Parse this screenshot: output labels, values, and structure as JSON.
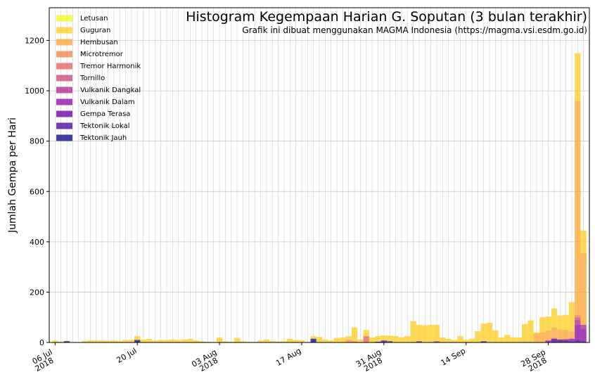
{
  "chart_data": {
    "type": "stacked_bar",
    "title": "Histogram Kegempaan Harian G. Soputan (3 bulan terakhir)",
    "subtitle": "Grafik ini dibuat menggunakan MAGMA Indonesia (https://magma.vsi.esdm.go.id)",
    "y_label": "Jumlah Gempa per Hari",
    "x": [
      "2018-07-06",
      "2018-07-07",
      "2018-07-08",
      "2018-07-09",
      "2018-07-10",
      "2018-07-11",
      "2018-07-12",
      "2018-07-13",
      "2018-07-14",
      "2018-07-15",
      "2018-07-16",
      "2018-07-17",
      "2018-07-18",
      "2018-07-19",
      "2018-07-20",
      "2018-07-21",
      "2018-07-22",
      "2018-07-23",
      "2018-07-24",
      "2018-07-25",
      "2018-07-26",
      "2018-07-27",
      "2018-07-28",
      "2018-07-29",
      "2018-07-30",
      "2018-07-31",
      "2018-08-01",
      "2018-08-02",
      "2018-08-03",
      "2018-08-04",
      "2018-08-05",
      "2018-08-06",
      "2018-08-07",
      "2018-08-08",
      "2018-08-09",
      "2018-08-10",
      "2018-08-11",
      "2018-08-12",
      "2018-08-13",
      "2018-08-14",
      "2018-08-15",
      "2018-08-16",
      "2018-08-17",
      "2018-08-18",
      "2018-08-19",
      "2018-08-20",
      "2018-08-21",
      "2018-08-22",
      "2018-08-23",
      "2018-08-24",
      "2018-08-25",
      "2018-08-26",
      "2018-08-27",
      "2018-08-28",
      "2018-08-29",
      "2018-08-30",
      "2018-08-31",
      "2018-09-01",
      "2018-09-02",
      "2018-09-03",
      "2018-09-04",
      "2018-09-05",
      "2018-09-06",
      "2018-09-07",
      "2018-09-08",
      "2018-09-09",
      "2018-09-10",
      "2018-09-11",
      "2018-09-12",
      "2018-09-13",
      "2018-09-14",
      "2018-09-15",
      "2018-09-16",
      "2018-09-17",
      "2018-09-18",
      "2018-09-19",
      "2018-09-20",
      "2018-09-21",
      "2018-09-22",
      "2018-09-23",
      "2018-09-24",
      "2018-09-25",
      "2018-09-26",
      "2018-09-27",
      "2018-09-28",
      "2018-09-29",
      "2018-09-30",
      "2018-10-01",
      "2018-10-02",
      "2018-10-03",
      "2018-10-04"
    ],
    "xlim": [
      "2018-07-05",
      "2018-10-05"
    ],
    "xticks": [
      {
        "value": "2018-07-06",
        "label": "06 Jul 2018"
      },
      {
        "value": "2018-07-20",
        "label": "20 Jul"
      },
      {
        "value": "2018-08-03",
        "label": "03 Aug 2018"
      },
      {
        "value": "2018-08-17",
        "label": "17 Aug"
      },
      {
        "value": "2018-08-31",
        "label": "31 Aug 2018"
      },
      {
        "value": "2018-09-14",
        "label": "14 Sep"
      },
      {
        "value": "2018-09-28",
        "label": "28 Sep 2018"
      }
    ],
    "ylim": [
      0,
      1330
    ],
    "yticks": [
      0,
      200,
      400,
      600,
      800,
      1000,
      1200
    ],
    "grid": true,
    "legend": "upper left",
    "series": [
      {
        "name": "Letusan",
        "color": "#f0f921",
        "values": [
          0,
          0,
          0,
          0,
          0,
          0,
          0,
          0,
          0,
          0,
          0,
          0,
          0,
          0,
          0,
          0,
          0,
          0,
          0,
          0,
          0,
          0,
          0,
          0,
          0,
          0,
          0,
          0,
          0,
          0,
          0,
          0,
          0,
          0,
          0,
          0,
          0,
          0,
          0,
          0,
          0,
          0,
          0,
          0,
          0,
          0,
          0,
          0,
          0,
          0,
          0,
          0,
          0,
          0,
          0,
          0,
          0,
          0,
          0,
          0,
          0,
          0,
          0,
          0,
          0,
          0,
          0,
          0,
          0,
          0,
          0,
          0,
          0,
          0,
          0,
          0,
          0,
          0,
          0,
          0,
          0,
          0,
          0,
          0,
          0,
          0,
          0,
          0,
          0,
          0,
          0
        ]
      },
      {
        "name": "Guguran",
        "color": "#fcce25",
        "values": [
          8,
          3,
          2,
          0,
          0,
          6,
          8,
          8,
          8,
          7,
          8,
          6,
          10,
          10,
          15,
          12,
          14,
          8,
          10,
          10,
          12,
          10,
          12,
          15,
          8,
          5,
          3,
          2,
          20,
          5,
          3,
          18,
          5,
          3,
          2,
          8,
          12,
          6,
          4,
          5,
          15,
          10,
          8,
          2,
          10,
          22,
          12,
          8,
          18,
          20,
          15,
          55,
          12,
          25,
          20,
          22,
          20,
          22,
          25,
          20,
          25,
          85,
          65,
          68,
          70,
          65,
          20,
          15,
          10,
          25,
          10,
          15,
          45,
          70,
          78,
          48,
          20,
          30,
          20,
          20,
          70,
          85,
          5,
          60,
          55,
          75,
          55,
          60,
          115,
          190,
          90
        ]
      },
      {
        "name": "Hembusan",
        "color": "#fca636",
        "values": [
          0,
          0,
          0,
          0,
          0,
          0,
          0,
          0,
          0,
          0,
          0,
          0,
          0,
          0,
          0,
          0,
          0,
          0,
          0,
          0,
          0,
          0,
          0,
          0,
          0,
          0,
          0,
          0,
          0,
          0,
          0,
          0,
          0,
          0,
          0,
          0,
          0,
          0,
          0,
          0,
          0,
          0,
          0,
          0,
          0,
          0,
          0,
          0,
          0,
          0,
          0,
          0,
          0,
          0,
          0,
          0,
          0,
          0,
          0,
          0,
          0,
          0,
          0,
          0,
          0,
          0,
          0,
          0,
          0,
          0,
          0,
          0,
          0,
          0,
          0,
          0,
          0,
          0,
          0,
          0,
          3,
          3,
          35,
          40,
          40,
          40,
          40,
          35,
          30,
          850,
          285
        ]
      },
      {
        "name": "Microtremor",
        "color": "#f2844b",
        "values": [
          0,
          0,
          0,
          0,
          0,
          0,
          0,
          0,
          0,
          0,
          0,
          0,
          0,
          0,
          0,
          0,
          0,
          0,
          0,
          0,
          0,
          0,
          0,
          0,
          0,
          0,
          0,
          0,
          0,
          0,
          0,
          0,
          0,
          0,
          0,
          0,
          0,
          0,
          0,
          0,
          0,
          0,
          0,
          0,
          0,
          0,
          0,
          0,
          0,
          0,
          10,
          0,
          0,
          0,
          0,
          0,
          0,
          0,
          0,
          0,
          0,
          0,
          0,
          0,
          0,
          0,
          0,
          0,
          0,
          0,
          0,
          0,
          0,
          0,
          0,
          0,
          0,
          0,
          0,
          0,
          0,
          0,
          0,
          0,
          0,
          5,
          0,
          0,
          0,
          10,
          0
        ]
      },
      {
        "name": "Tremor Harmonik",
        "color": "#e16462",
        "values": [
          0,
          0,
          0,
          0,
          0,
          0,
          0,
          0,
          0,
          0,
          0,
          0,
          0,
          0,
          0,
          0,
          0,
          0,
          0,
          0,
          0,
          0,
          0,
          0,
          0,
          0,
          0,
          0,
          0,
          0,
          0,
          0,
          0,
          0,
          0,
          0,
          0,
          0,
          0,
          0,
          0,
          0,
          0,
          0,
          0,
          0,
          0,
          0,
          0,
          0,
          0,
          5,
          0,
          25,
          0,
          0,
          0,
          0,
          0,
          0,
          0,
          0,
          0,
          0,
          0,
          0,
          0,
          0,
          0,
          0,
          0,
          0,
          0,
          0,
          0,
          0,
          0,
          0,
          0,
          0,
          0,
          0,
          0,
          0,
          0,
          0,
          0,
          0,
          0,
          0,
          0
        ]
      },
      {
        "name": "Tornillo",
        "color": "#cc4778",
        "values": [
          0,
          0,
          0,
          0,
          0,
          0,
          0,
          0,
          0,
          0,
          0,
          0,
          0,
          0,
          0,
          0,
          0,
          0,
          0,
          0,
          0,
          0,
          0,
          0,
          0,
          0,
          0,
          0,
          0,
          0,
          0,
          0,
          0,
          0,
          0,
          0,
          0,
          0,
          0,
          0,
          0,
          0,
          0,
          0,
          0,
          0,
          0,
          0,
          0,
          0,
          0,
          0,
          0,
          0,
          0,
          0,
          0,
          0,
          0,
          0,
          0,
          0,
          0,
          0,
          0,
          0,
          0,
          0,
          0,
          0,
          0,
          0,
          0,
          0,
          0,
          0,
          0,
          0,
          0,
          0,
          0,
          0,
          0,
          0,
          0,
          0,
          0,
          5,
          0,
          10,
          0
        ]
      },
      {
        "name": "Vulkanik Dangkal",
        "color": "#b12a90",
        "values": [
          0,
          0,
          0,
          0,
          0,
          0,
          0,
          0,
          0,
          0,
          0,
          0,
          0,
          0,
          0,
          0,
          0,
          0,
          0,
          0,
          0,
          0,
          0,
          0,
          0,
          0,
          0,
          0,
          0,
          0,
          0,
          0,
          0,
          0,
          0,
          0,
          0,
          0,
          0,
          0,
          0,
          0,
          0,
          0,
          0,
          0,
          0,
          0,
          0,
          0,
          0,
          0,
          0,
          0,
          0,
          0,
          0,
          0,
          0,
          0,
          0,
          0,
          0,
          0,
          0,
          5,
          0,
          0,
          0,
          0,
          0,
          0,
          0,
          0,
          0,
          0,
          0,
          0,
          0,
          0,
          0,
          0,
          0,
          0,
          0,
          0,
          0,
          0,
          0,
          20,
          15
        ]
      },
      {
        "name": "Vulkanik Dalam",
        "color": "#8f0da4",
        "values": [
          0,
          0,
          0,
          0,
          0,
          0,
          0,
          0,
          0,
          0,
          0,
          0,
          0,
          0,
          0,
          0,
          0,
          0,
          0,
          0,
          0,
          0,
          0,
          0,
          0,
          0,
          0,
          0,
          0,
          0,
          0,
          0,
          0,
          0,
          0,
          0,
          0,
          0,
          0,
          0,
          0,
          0,
          0,
          0,
          0,
          0,
          0,
          0,
          0,
          0,
          0,
          0,
          0,
          0,
          0,
          0,
          0,
          0,
          0,
          0,
          0,
          0,
          5,
          0,
          0,
          0,
          0,
          0,
          0,
          0,
          0,
          0,
          0,
          0,
          0,
          0,
          0,
          0,
          0,
          0,
          0,
          0,
          0,
          0,
          8,
          0,
          0,
          0,
          10,
          60,
          50
        ]
      },
      {
        "name": "Gempa Terasa",
        "color": "#6a00a8",
        "values": [
          0,
          0,
          0,
          0,
          0,
          0,
          0,
          0,
          0,
          0,
          0,
          0,
          0,
          0,
          0,
          0,
          0,
          0,
          0,
          0,
          0,
          0,
          0,
          0,
          0,
          0,
          0,
          0,
          0,
          0,
          0,
          0,
          0,
          0,
          0,
          0,
          0,
          0,
          0,
          0,
          0,
          0,
          0,
          0,
          0,
          0,
          0,
          0,
          0,
          0,
          0,
          0,
          0,
          0,
          0,
          0,
          0,
          0,
          0,
          0,
          0,
          0,
          0,
          0,
          0,
          0,
          0,
          0,
          0,
          0,
          0,
          0,
          0,
          0,
          0,
          0,
          0,
          0,
          0,
          0,
          0,
          0,
          0,
          0,
          0,
          0,
          0,
          0,
          0,
          0,
          0
        ]
      },
      {
        "name": "Tektonik Lokal",
        "color": "#4b03a1",
        "values": [
          0,
          0,
          0,
          0,
          0,
          0,
          0,
          0,
          0,
          0,
          0,
          0,
          0,
          0,
          0,
          0,
          0,
          0,
          0,
          0,
          0,
          0,
          0,
          0,
          0,
          0,
          0,
          0,
          0,
          0,
          0,
          0,
          0,
          0,
          0,
          0,
          0,
          0,
          0,
          0,
          0,
          0,
          0,
          0,
          0,
          0,
          0,
          0,
          0,
          0,
          0,
          0,
          0,
          0,
          0,
          0,
          8,
          5,
          0,
          0,
          0,
          0,
          0,
          0,
          0,
          0,
          0,
          0,
          0,
          0,
          0,
          0,
          0,
          5,
          0,
          0,
          0,
          0,
          0,
          0,
          0,
          0,
          0,
          0,
          0,
          15,
          12,
          10,
          5,
          10,
          5
        ]
      },
      {
        "name": "Tektonik Jauh",
        "color": "#0d0887",
        "values": [
          0,
          0,
          5,
          0,
          0,
          0,
          0,
          0,
          0,
          0,
          0,
          0,
          0,
          0,
          10,
          0,
          0,
          0,
          0,
          0,
          0,
          0,
          0,
          0,
          0,
          0,
          0,
          0,
          0,
          0,
          0,
          0,
          0,
          0,
          0,
          0,
          0,
          0,
          0,
          0,
          0,
          0,
          0,
          0,
          15,
          0,
          0,
          0,
          0,
          0,
          0,
          0,
          0,
          0,
          0,
          3,
          0,
          0,
          0,
          0,
          0,
          0,
          0,
          0,
          0,
          0,
          0,
          0,
          0,
          0,
          0,
          0,
          0,
          0,
          0,
          0,
          0,
          0,
          0,
          0,
          0,
          0,
          0,
          0,
          0,
          0,
          0,
          0,
          0,
          0,
          0
        ]
      }
    ]
  }
}
